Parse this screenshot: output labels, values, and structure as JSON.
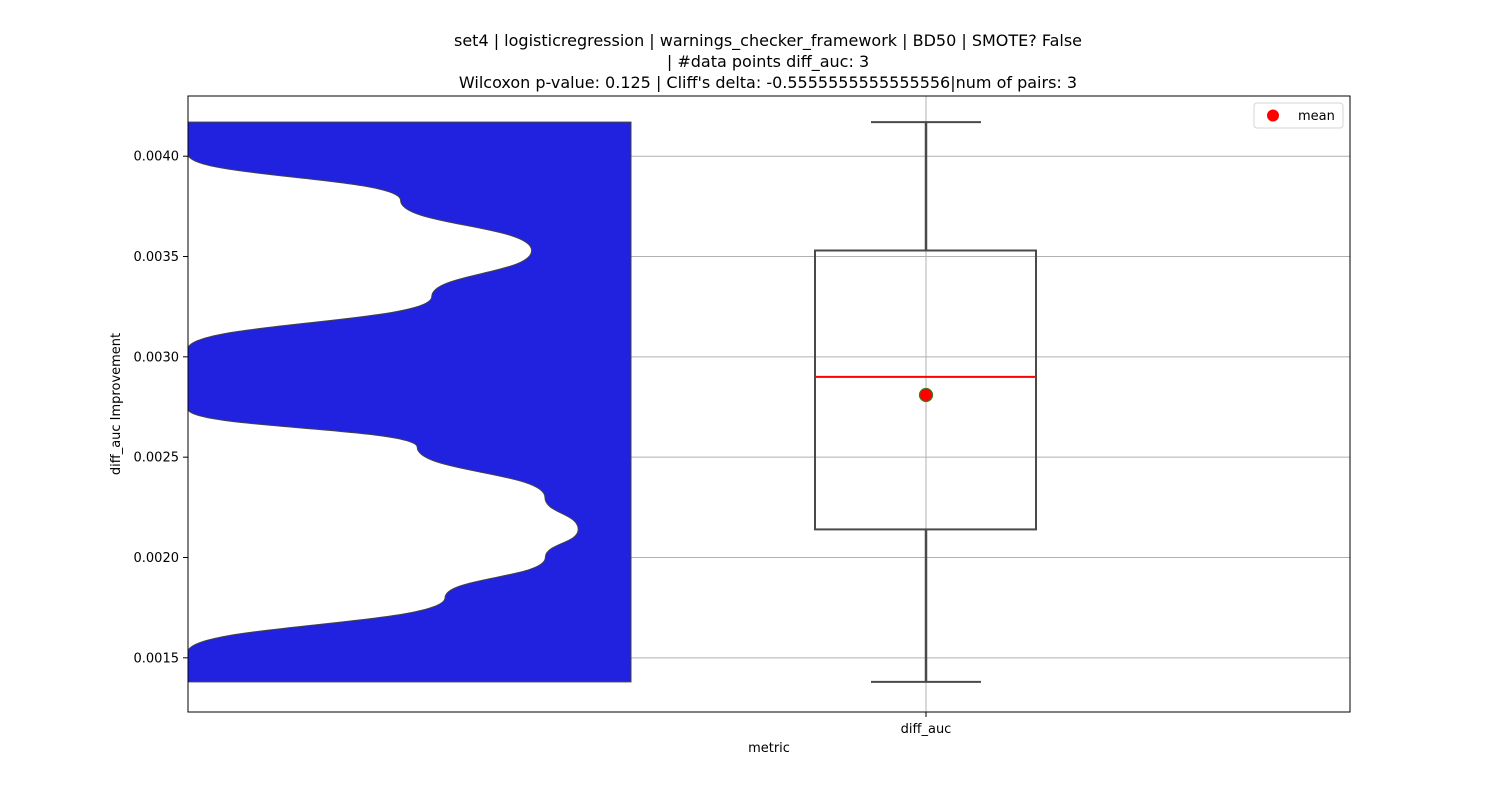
{
  "chart_data": {
    "type": "box",
    "title_lines": [
      "set4 | logisticregression | warnings_checker_framework | BD50 | SMOTE? False",
      "| #data points diff_auc: 3",
      "Wilcoxon p-value: 0.125 | Cliff's delta: -0.5555555555555556|num of pairs: 3"
    ],
    "xlabel": "metric",
    "ylabel": "diff_auc Improvement",
    "categories": [
      "diff_auc"
    ],
    "ylim": [
      0.00123,
      0.0043
    ],
    "yticks": [
      0.0015,
      0.002,
      0.0025,
      0.003,
      0.0035,
      0.004
    ],
    "ytick_labels": [
      "0.0015",
      "0.0020",
      "0.0025",
      "0.0030",
      "0.0035",
      "0.0040"
    ],
    "grid": true,
    "legend": {
      "placement": "top-right",
      "entries": [
        {
          "label": "mean",
          "color": "#ff0000"
        }
      ]
    },
    "box": {
      "whisker_low": 0.00138,
      "q1": 0.00214,
      "median": 0.0029,
      "q3": 0.00353,
      "whisker_high": 0.00417,
      "mean": 0.00281
    },
    "density": {
      "fill_color": "#2121e0",
      "edge_color": "#444444",
      "range": [
        0.00138,
        0.00417
      ],
      "profile": [
        [
          0.00138,
          0.0
        ],
        [
          0.00153,
          0.0
        ],
        [
          0.0018,
          0.618
        ],
        [
          0.002,
          0.859
        ],
        [
          0.00214,
          0.938
        ],
        [
          0.0023,
          0.858
        ],
        [
          0.00255,
          0.551
        ],
        [
          0.00274,
          0.0
        ],
        [
          0.00304,
          0.0
        ],
        [
          0.0033,
          0.586
        ],
        [
          0.00353,
          0.826
        ],
        [
          0.00378,
          0.511
        ],
        [
          0.00401,
          0.0
        ],
        [
          0.00417,
          0.0
        ]
      ]
    },
    "colors": {
      "median": "#ff0000",
      "mean_fill": "#ff0000",
      "mean_edge": "#3a7a1a",
      "box_edge": "#4a4a4a"
    }
  }
}
